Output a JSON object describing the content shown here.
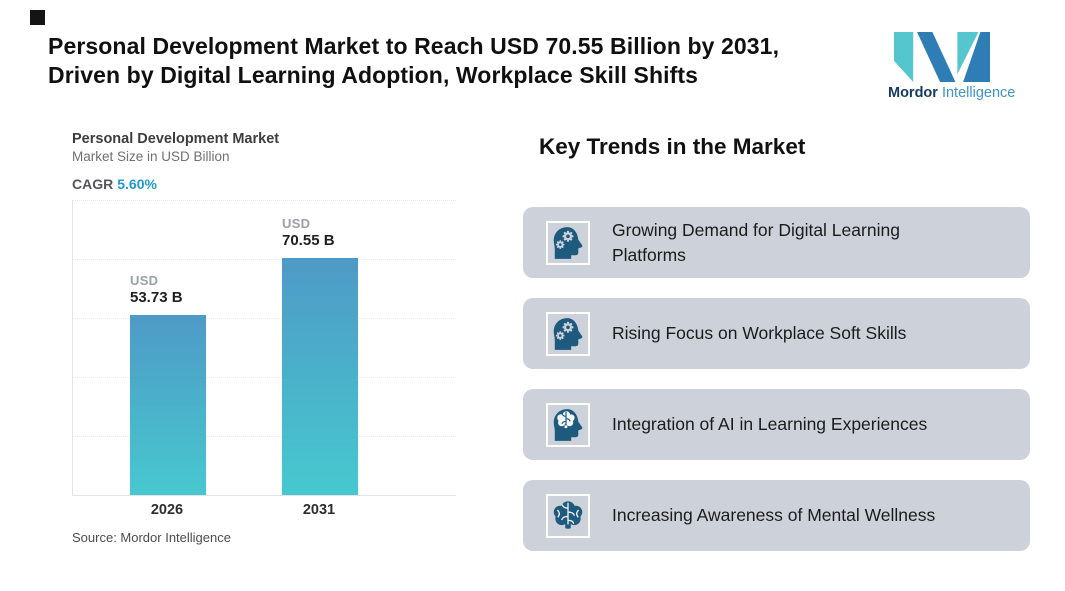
{
  "header": {
    "title_line1": "Personal Development Market to Reach USD 70.55 Billion by 2031,",
    "title_line2": "Driven by Digital Learning Adoption, Workplace Skill Shifts",
    "logo": {
      "brand_bold": "Mordor",
      "brand_light": "Intelligence",
      "teal": "#56C6CE",
      "blue": "#2E7EB5"
    }
  },
  "chart": {
    "title": "Personal Development Market",
    "subtitle": "Market Size in USD Billion",
    "cagr_label": "CAGR",
    "cagr_value": "5.60%",
    "source": "Source: Mordor Intelligence",
    "bars": [
      {
        "year": "2026",
        "label_currency": "USD",
        "label_value": "53.73 B"
      },
      {
        "year": "2031",
        "label_currency": "USD",
        "label_value": "70.55 B"
      }
    ],
    "bar_gradient_top": "#4E9AC6",
    "bar_gradient_bottom": "#47C8CF",
    "accent_color": "#1E9AD2"
  },
  "chart_data": {
    "type": "bar",
    "categories": [
      "2026",
      "2031"
    ],
    "values": [
      53.73,
      70.55
    ],
    "series_unit": "USD Billion",
    "data_labels": [
      "USD 53.73 B",
      "USD 70.55 B"
    ],
    "title": "Personal Development Market",
    "xlabel": "",
    "ylabel": "Market Size in USD Billion",
    "ylim": [
      0,
      88
    ],
    "grid": true,
    "legend": false,
    "cagr": "5.60%",
    "source": "Source: Mordor Intelligence"
  },
  "trends": {
    "heading": "Key Trends in the Market",
    "card_bg": "#CDD2DA",
    "icon_color": "#1D5A7D",
    "items": [
      {
        "icon": "head-gears-icon",
        "text": "Growing Demand for Digital Learning\nPlatforms"
      },
      {
        "icon": "head-gears-icon",
        "text": "Rising Focus on Workplace Soft Skills"
      },
      {
        "icon": "head-brain-icon",
        "text": "Integration of AI in Learning Experiences"
      },
      {
        "icon": "brain-icon",
        "text": "Increasing Awareness of Mental Wellness"
      }
    ]
  }
}
